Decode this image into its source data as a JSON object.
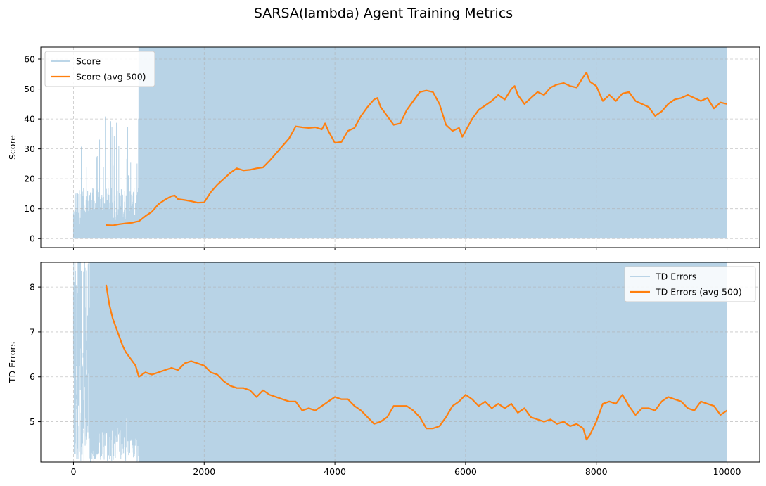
{
  "figure": {
    "title": "SARSA(lambda) Agent Training Metrics"
  },
  "chart_data": [
    {
      "type": "line",
      "ylabel": "Score",
      "xlabel": "",
      "xlim": [
        -500,
        10500
      ],
      "ylim": [
        -3,
        64
      ],
      "xticks": [
        0,
        2000,
        4000,
        6000,
        8000,
        10000
      ],
      "yticks": [
        0,
        10,
        20,
        30,
        40,
        50,
        60
      ],
      "show_x_tick_labels": false,
      "grid": true,
      "legend_position": "top-left",
      "colors": {
        "raw": "#a6c8e0",
        "avg": "#ff7f0e"
      },
      "series": [
        {
          "name": "Score",
          "kind": "raw",
          "description_segments": [
            {
              "x_start": 0,
              "x_end": 1000,
              "low": 0,
              "high": 17,
              "peak_max": 41
            },
            {
              "x_start": 1000,
              "x_end": 2000,
              "low": 0,
              "high": 64,
              "peak_max": 64
            },
            {
              "x_start": 2000,
              "x_end": 10000,
              "low": 0,
              "high": 64,
              "peak_max": 64
            }
          ]
        },
        {
          "name": "Score (avg 500)",
          "kind": "avg",
          "x": [
            500,
            600,
            700,
            800,
            900,
            950,
            1000,
            1100,
            1200,
            1300,
            1400,
            1500,
            1550,
            1600,
            1700,
            1800,
            1900,
            2000,
            2100,
            2200,
            2300,
            2400,
            2500,
            2600,
            2700,
            2800,
            2900,
            3000,
            3100,
            3200,
            3300,
            3400,
            3500,
            3600,
            3700,
            3800,
            3850,
            3900,
            4000,
            4100,
            4200,
            4300,
            4400,
            4500,
            4600,
            4650,
            4700,
            4800,
            4900,
            5000,
            5100,
            5200,
            5300,
            5400,
            5500,
            5600,
            5700,
            5800,
            5900,
            5950,
            6000,
            6100,
            6200,
            6300,
            6400,
            6500,
            6600,
            6700,
            6750,
            6800,
            6900,
            7000,
            7100,
            7200,
            7300,
            7400,
            7500,
            7600,
            7700,
            7800,
            7850,
            7900,
            8000,
            8100,
            8200,
            8300,
            8400,
            8500,
            8600,
            8700,
            8800,
            8900,
            9000,
            9100,
            9200,
            9300,
            9400,
            9500,
            9600,
            9700,
            9800,
            9900,
            10000
          ],
          "values": [
            4.5,
            4.4,
            4.8,
            5.1,
            5.3,
            5.6,
            5.8,
            7.5,
            9.0,
            11.5,
            13.0,
            14.2,
            14.4,
            13.2,
            12.9,
            12.5,
            12.0,
            12.1,
            15.5,
            18.0,
            20.0,
            22.0,
            23.5,
            22.8,
            23.0,
            23.5,
            23.8,
            26.0,
            28.5,
            31.0,
            33.5,
            37.5,
            37.2,
            37.0,
            37.2,
            36.5,
            38.5,
            36.0,
            32.0,
            32.3,
            36.0,
            37.0,
            41.0,
            44.0,
            46.5,
            47.0,
            44.0,
            41.0,
            38.0,
            38.5,
            43.0,
            46.0,
            49.0,
            49.5,
            49.0,
            45.0,
            38.0,
            36.0,
            37.0,
            34.0,
            36.0,
            40.0,
            43.0,
            44.5,
            46.0,
            48.0,
            46.5,
            50.0,
            51.0,
            48.0,
            45.0,
            47.0,
            49.0,
            48.0,
            50.5,
            51.5,
            52.0,
            51.0,
            50.5,
            54.0,
            55.5,
            52.5,
            51.0,
            46.0,
            48.0,
            46.0,
            48.5,
            49.0,
            46.0,
            45.0,
            44.0,
            41.0,
            42.5,
            45.0,
            46.5,
            47.0,
            48.0,
            47.0,
            46.0,
            47.0,
            43.5,
            45.5,
            45.0
          ]
        }
      ]
    },
    {
      "type": "line",
      "ylabel": "TD Errors",
      "xlabel": "",
      "xlim": [
        -500,
        10500
      ],
      "ylim": [
        4.1,
        8.55
      ],
      "xticks": [
        0,
        2000,
        4000,
        6000,
        8000,
        10000
      ],
      "yticks": [
        5,
        6,
        7,
        8
      ],
      "show_x_tick_labels": true,
      "grid": true,
      "legend_position": "top-right",
      "colors": {
        "raw": "#a6c8e0",
        "avg": "#ff7f0e"
      },
      "series": [
        {
          "name": "TD Errors",
          "kind": "raw",
          "description_segments": [
            {
              "x_start": 0,
              "x_end": 1000,
              "low": 4.1,
              "high": 8.55
            },
            {
              "x_start": 1000,
              "x_end": 10000,
              "low": 4.1,
              "high": 8.55
            }
          ]
        },
        {
          "name": "TD Errors (avg 500)",
          "kind": "avg",
          "x": [
            500,
            550,
            600,
            650,
            700,
            750,
            800,
            900,
            950,
            1000,
            1050,
            1100,
            1200,
            1300,
            1400,
            1500,
            1600,
            1700,
            1800,
            1900,
            2000,
            2100,
            2200,
            2300,
            2400,
            2500,
            2600,
            2700,
            2800,
            2900,
            3000,
            3100,
            3200,
            3300,
            3400,
            3500,
            3600,
            3700,
            3800,
            3900,
            4000,
            4100,
            4200,
            4300,
            4400,
            4500,
            4600,
            4700,
            4800,
            4900,
            5000,
            5100,
            5200,
            5300,
            5400,
            5500,
            5600,
            5700,
            5800,
            5900,
            6000,
            6100,
            6200,
            6300,
            6400,
            6500,
            6600,
            6700,
            6800,
            6900,
            7000,
            7100,
            7200,
            7300,
            7400,
            7500,
            7600,
            7700,
            7800,
            7850,
            7900,
            8000,
            8100,
            8200,
            8300,
            8400,
            8500,
            8600,
            8700,
            8800,
            8900,
            9000,
            9100,
            9200,
            9300,
            9400,
            9500,
            9600,
            9700,
            9800,
            9900,
            10000
          ],
          "values": [
            8.05,
            7.6,
            7.3,
            7.1,
            6.9,
            6.7,
            6.55,
            6.35,
            6.25,
            6.0,
            6.05,
            6.1,
            6.05,
            6.1,
            6.15,
            6.2,
            6.15,
            6.3,
            6.35,
            6.3,
            6.25,
            6.1,
            6.05,
            5.9,
            5.8,
            5.75,
            5.75,
            5.7,
            5.55,
            5.7,
            5.6,
            5.55,
            5.5,
            5.45,
            5.45,
            5.25,
            5.3,
            5.25,
            5.35,
            5.45,
            5.55,
            5.5,
            5.5,
            5.35,
            5.25,
            5.1,
            4.95,
            5.0,
            5.1,
            5.35,
            5.35,
            5.35,
            5.25,
            5.1,
            4.85,
            4.85,
            4.9,
            5.1,
            5.35,
            5.45,
            5.6,
            5.5,
            5.35,
            5.45,
            5.3,
            5.4,
            5.3,
            5.4,
            5.2,
            5.3,
            5.1,
            5.05,
            5.0,
            5.05,
            4.95,
            5.0,
            4.9,
            4.95,
            4.85,
            4.6,
            4.7,
            5.0,
            5.4,
            5.45,
            5.4,
            5.6,
            5.35,
            5.15,
            5.3,
            5.3,
            5.25,
            5.45,
            5.55,
            5.5,
            5.45,
            5.3,
            5.25,
            5.45,
            5.4,
            5.35,
            5.15,
            5.25
          ]
        }
      ]
    }
  ]
}
